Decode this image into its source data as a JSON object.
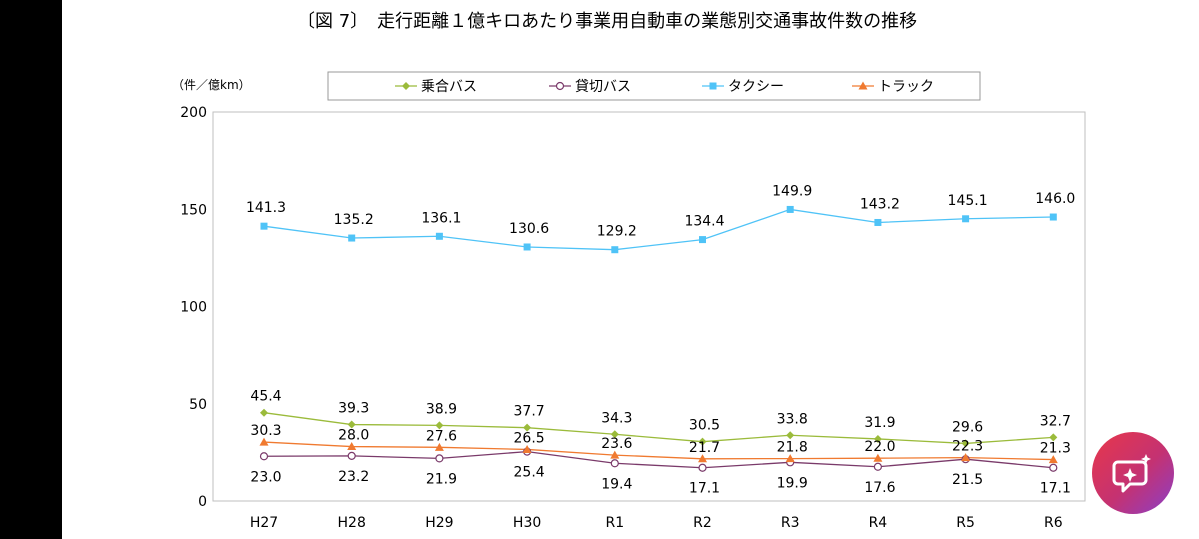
{
  "title": "〔図 7〕　走行距離１億キロあたり事業用自動車の業態別交通事故件数の推移",
  "unit_label": "（件／億km）",
  "colors": {
    "bus": "#9bbb3b",
    "charter": "#7a3a6a",
    "taxi": "#4fc3f7",
    "truck": "#f07a30"
  },
  "chart_data": {
    "type": "line",
    "title": "〔図 7〕　走行距離１億キロあたり事業用自動車の業態別交通事故件数の推移",
    "ylabel": "（件／億km）",
    "xlabel": "",
    "categories": [
      "H27",
      "H28",
      "H29",
      "H30",
      "R1",
      "R2",
      "R3",
      "R4",
      "R5",
      "R6"
    ],
    "ylim": [
      0,
      200
    ],
    "yticks": [
      "0",
      "50",
      "100",
      "150",
      "200"
    ],
    "grid": false,
    "legend": "top",
    "series": [
      {
        "key": "bus",
        "name": "乗合バス",
        "marker": "diamond",
        "values": [
          45.4,
          39.3,
          38.9,
          37.7,
          34.3,
          30.5,
          33.8,
          31.9,
          29.6,
          32.7
        ],
        "labels": [
          "45.4",
          "39.3",
          "38.9",
          "37.7",
          "34.3",
          "30.5",
          "33.8",
          "31.9",
          "29.6",
          "32.7"
        ]
      },
      {
        "key": "charter",
        "name": "貸切バス",
        "marker": "circle",
        "values": [
          23.0,
          23.2,
          21.9,
          25.4,
          19.4,
          17.1,
          19.9,
          17.6,
          21.5,
          17.1
        ],
        "labels": [
          "23.0",
          "23.2",
          "21.9",
          "25.4",
          "19.4",
          "17.1",
          "19.9",
          "17.6",
          "21.5",
          "17.1"
        ]
      },
      {
        "key": "taxi",
        "name": "タクシー",
        "marker": "square",
        "values": [
          141.3,
          135.2,
          136.1,
          130.6,
          129.2,
          134.4,
          149.9,
          143.2,
          145.1,
          146.0
        ],
        "labels": [
          "141.3",
          "135.2",
          "136.1",
          "130.6",
          "129.2",
          "134.4",
          "149.9",
          "143.2",
          "145.1",
          "146.0"
        ]
      },
      {
        "key": "truck",
        "name": "トラック",
        "marker": "triangle",
        "values": [
          30.3,
          28.0,
          27.6,
          26.5,
          23.6,
          21.7,
          21.8,
          22.0,
          22.3,
          21.3
        ],
        "labels": [
          "30.3",
          "28.0",
          "27.6",
          "26.5",
          "23.6",
          "21.7",
          "21.8",
          "22.0",
          "22.3",
          "21.3"
        ]
      }
    ]
  }
}
